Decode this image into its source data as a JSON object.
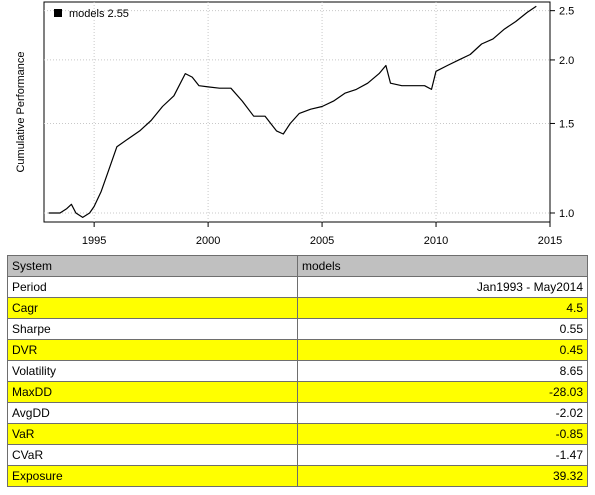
{
  "chart_data": {
    "type": "line",
    "title": "",
    "xlabel": "",
    "ylabel": "Cumulative Performance",
    "y_scale": "log",
    "xlim": [
      1992.8,
      2015.0
    ],
    "ylim": [
      0.96,
      2.6
    ],
    "x_ticks": [
      1995,
      2000,
      2005,
      2010,
      2015
    ],
    "y_ticks": [
      1.0,
      1.5,
      2.0,
      2.5
    ],
    "y_tick_labels": [
      "1.0",
      "1.5",
      "2.0",
      "2.5"
    ],
    "grid": true,
    "legend": {
      "position": "top-left",
      "label": "models 2.55"
    },
    "series": [
      {
        "name": "models",
        "color": "#000000",
        "x": [
          1993.0,
          1993.5,
          1993.8,
          1994.0,
          1994.2,
          1994.5,
          1994.8,
          1995.0,
          1995.3,
          1995.6,
          1996.0,
          1996.5,
          1997.0,
          1997.5,
          1998.0,
          1998.5,
          1999.0,
          1999.3,
          1999.6,
          2000.0,
          2000.5,
          2001.0,
          2001.5,
          2002.0,
          2002.5,
          2003.0,
          2003.3,
          2003.6,
          2004.0,
          2004.5,
          2005.0,
          2005.5,
          2006.0,
          2006.5,
          2007.0,
          2007.5,
          2007.8,
          2008.0,
          2008.5,
          2009.0,
          2009.5,
          2009.8,
          2010.0,
          2010.5,
          2011.0,
          2011.5,
          2012.0,
          2012.5,
          2013.0,
          2013.5,
          2014.0,
          2014.4
        ],
        "values": [
          1.0,
          1.0,
          1.02,
          1.04,
          1.0,
          0.98,
          1.0,
          1.03,
          1.1,
          1.2,
          1.35,
          1.4,
          1.45,
          1.52,
          1.62,
          1.7,
          1.88,
          1.85,
          1.78,
          1.77,
          1.76,
          1.76,
          1.66,
          1.55,
          1.55,
          1.45,
          1.43,
          1.5,
          1.57,
          1.6,
          1.62,
          1.66,
          1.72,
          1.75,
          1.8,
          1.88,
          1.95,
          1.8,
          1.78,
          1.78,
          1.78,
          1.75,
          1.9,
          1.95,
          2.0,
          2.05,
          2.15,
          2.2,
          2.3,
          2.38,
          2.48,
          2.55
        ]
      }
    ]
  },
  "table": {
    "headers": [
      "System",
      "models"
    ],
    "rows": [
      {
        "label": "Period",
        "value": "Jan1993 - May2014",
        "highlight": false
      },
      {
        "label": "Cagr",
        "value": "4.5",
        "highlight": true
      },
      {
        "label": "Sharpe",
        "value": "0.55",
        "highlight": false
      },
      {
        "label": "DVR",
        "value": "0.45",
        "highlight": true
      },
      {
        "label": "Volatility",
        "value": "8.65",
        "highlight": false
      },
      {
        "label": "MaxDD",
        "value": "-28.03",
        "highlight": true
      },
      {
        "label": "AvgDD",
        "value": "-2.02",
        "highlight": false
      },
      {
        "label": "VaR",
        "value": "-0.85",
        "highlight": true
      },
      {
        "label": "CVaR",
        "value": "-1.47",
        "highlight": false
      },
      {
        "label": "Exposure",
        "value": "39.32",
        "highlight": true
      }
    ]
  }
}
